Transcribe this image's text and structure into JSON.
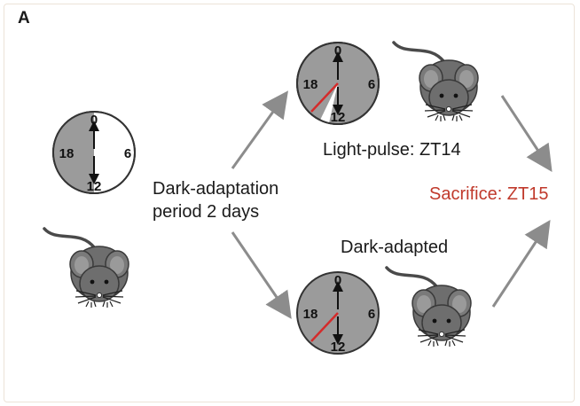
{
  "panel_label": "A",
  "dark_adaptation": {
    "line1": "Dark-adaptation",
    "line2": "period 2 days"
  },
  "light_pulse_label": "Light-pulse: ZT14",
  "sacrifice_label": "Sacrifice: ZT15",
  "dark_adapted_label": "Dark-adapted",
  "clock_labels": {
    "top": "0",
    "right": "6",
    "bottom": "12",
    "left": "18"
  },
  "colors": {
    "arrow": "#8c8c8c",
    "clock_dark": "#9b9b9b",
    "mouse_body": "#6e6e6e",
    "red_hand": "#d42b2b",
    "sacrifice_text": "#c0392b"
  }
}
